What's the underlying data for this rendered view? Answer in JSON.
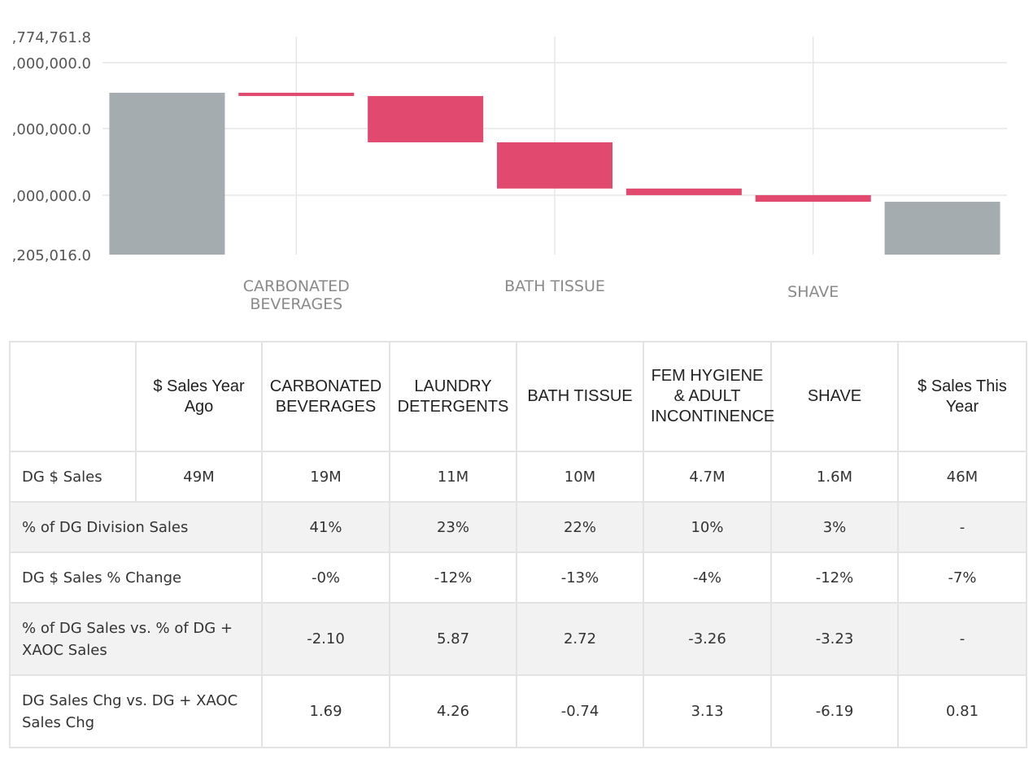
{
  "chart_data": {
    "type": "waterfall",
    "y_tick_labels": [
      ",774,761.8",
      ",000,000.0",
      ",000,000.0",
      ",000,000.0",
      ",205,016.0"
    ],
    "x_tick_labels": [
      "CARBONATED BEVERAGES",
      "BATH TISSUE",
      "SHAVE"
    ],
    "grid": true,
    "steps": [
      {
        "name": "$ Sales Year Ago",
        "kind": "total",
        "start": 0,
        "end": 49.1
      },
      {
        "name": "CARBONATED BEVERAGES",
        "kind": "delta",
        "start": 49.1,
        "end": 49.0
      },
      {
        "name": "LAUNDRY DETERGENTS",
        "kind": "delta",
        "start": 49.0,
        "end": 47.6
      },
      {
        "name": "BATH TISSUE",
        "kind": "delta",
        "start": 47.6,
        "end": 46.2
      },
      {
        "name": "FEM HYGIENE & ADULT INCONTINENCE",
        "kind": "delta",
        "start": 46.2,
        "end": 46.0
      },
      {
        "name": "SHAVE",
        "kind": "delta",
        "start": 46.0,
        "end": 45.8
      },
      {
        "name": "$ Sales This Year",
        "kind": "total",
        "start": 0,
        "end": 45.8
      }
    ],
    "y_range": [
      44.2,
      50.8
    ],
    "colors": {
      "total": "#a2a9ac",
      "decrease": "#e0436a",
      "grid": "#e6e6e6"
    }
  },
  "table": {
    "headers": [
      "",
      "$ Sales Year Ago",
      "CARBONATED BEVERAGES",
      "LAUNDRY DETERGENTS",
      "BATH TISSUE",
      "FEM HYGIENE & ADULT INCONTINENCE",
      "SHAVE",
      "$ Sales This Year"
    ],
    "rows": [
      {
        "label": "DG $ Sales",
        "values": [
          "49M",
          "19M",
          "11M",
          "10M",
          "4.7M",
          "1.6M",
          "46M"
        ]
      },
      {
        "label": "% of DG Division Sales",
        "values": [
          "41%",
          "23%",
          "22%",
          "10%",
          "3%",
          "-"
        ]
      },
      {
        "label": "DG $ Sales % Change",
        "values": [
          "-0%",
          "-12%",
          "-13%",
          "-4%",
          "-12%",
          "-7%"
        ]
      },
      {
        "label": "% of DG Sales vs. % of DG + XAOC Sales",
        "values": [
          "-2.10",
          "5.87",
          "2.72",
          "-3.26",
          "-3.23",
          "-"
        ]
      },
      {
        "label": "DG Sales Chg vs. DG + XAOC Sales Chg",
        "values": [
          "1.69",
          "4.26",
          "-0.74",
          "3.13",
          "-6.19",
          "0.81"
        ]
      }
    ]
  }
}
